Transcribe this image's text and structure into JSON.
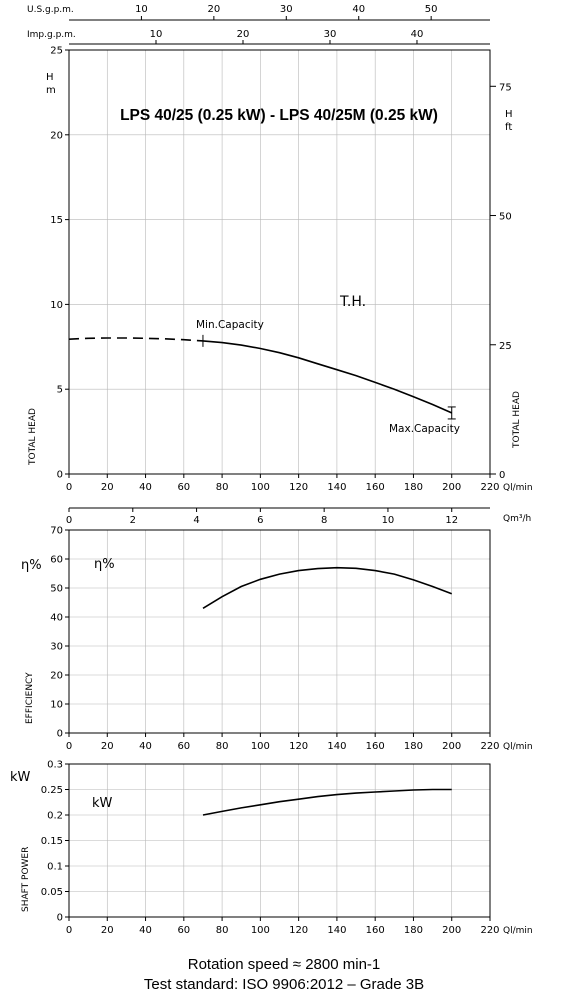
{
  "chart_data": [
    {
      "type": "line",
      "panel": "head",
      "title": "LPS 40/25 (0.25 kW) - LPS 40/25M (0.25 kW)",
      "xlabel": "Ql/min",
      "ylabel": "TOTAL HEAD",
      "y_unit_left": "H\nm",
      "y_unit_right": "H\nft",
      "right_ylabel": "TOTAL HEAD",
      "xlim": [
        0,
        220
      ],
      "ylim": [
        0,
        25
      ],
      "x_ticks": [
        "0",
        "20",
        "40",
        "60",
        "80",
        "100",
        "120",
        "140",
        "160",
        "180",
        "200",
        "220"
      ],
      "y_ticks": [
        "0",
        "5",
        "10",
        "15",
        "20",
        "25"
      ],
      "right_y_ticks": [
        "0",
        "25",
        "50",
        "75"
      ],
      "top_axes": [
        {
          "label": "U.S.g.p.m.",
          "ticks": [
            "10",
            "20",
            "30",
            "40",
            "50"
          ]
        },
        {
          "label": "Imp.g.p.m.",
          "ticks": [
            "10",
            "20",
            "30",
            "40"
          ]
        }
      ],
      "bottom_axis2": {
        "label": "Qm³/h",
        "ticks": [
          "0",
          "2",
          "4",
          "6",
          "8",
          "10",
          "12"
        ]
      },
      "curve_label": "T.H.",
      "annotations": [
        "Min.Capacity",
        "Max.Capacity"
      ],
      "dashed": {
        "x": [
          0,
          10,
          20,
          30,
          40,
          50,
          60,
          70
        ],
        "y": [
          7.95,
          8.0,
          8.02,
          8.02,
          8.0,
          7.97,
          7.92,
          7.85
        ]
      },
      "series": [
        {
          "x": [
            70,
            80,
            90,
            100,
            110,
            120,
            130,
            140,
            150,
            160,
            170,
            180,
            190,
            200
          ],
          "y": [
            7.85,
            7.75,
            7.6,
            7.4,
            7.15,
            6.85,
            6.5,
            6.15,
            5.8,
            5.4,
            5.0,
            4.55,
            4.1,
            3.6
          ]
        }
      ]
    },
    {
      "type": "line",
      "panel": "efficiency",
      "ylabel": "EFFICIENCY",
      "y_unit": "η%",
      "curve_label": "η%",
      "xlabel": "Ql/min",
      "xlim": [
        0,
        220
      ],
      "ylim": [
        0,
        70
      ],
      "x_ticks": [
        "0",
        "20",
        "40",
        "60",
        "80",
        "100",
        "120",
        "140",
        "160",
        "180",
        "200",
        "220"
      ],
      "y_ticks": [
        "0",
        "10",
        "20",
        "30",
        "40",
        "50",
        "60",
        "70"
      ],
      "series": [
        {
          "x": [
            70,
            80,
            90,
            100,
            110,
            120,
            130,
            140,
            150,
            160,
            170,
            180,
            190,
            200
          ],
          "y": [
            43,
            47,
            50.5,
            53,
            54.8,
            56,
            56.7,
            57,
            56.8,
            56,
            54.8,
            52.8,
            50.5,
            48
          ]
        }
      ]
    },
    {
      "type": "line",
      "panel": "power",
      "ylabel": "SHAFT POWER",
      "y_unit": "kW",
      "curve_label": "kW",
      "xlabel": "Ql/min",
      "xlim": [
        0,
        220
      ],
      "ylim": [
        0,
        0.3
      ],
      "x_ticks": [
        "0",
        "20",
        "40",
        "60",
        "80",
        "100",
        "120",
        "140",
        "160",
        "180",
        "200",
        "220"
      ],
      "y_ticks": [
        "0",
        "0.05",
        "0.1",
        "0.15",
        "0.2",
        "0.25",
        "0.3"
      ],
      "series": [
        {
          "x": [
            70,
            80,
            90,
            100,
            110,
            120,
            130,
            140,
            150,
            160,
            170,
            180,
            190,
            200
          ],
          "y": [
            0.2,
            0.207,
            0.214,
            0.22,
            0.226,
            0.231,
            0.236,
            0.24,
            0.243,
            0.245,
            0.247,
            0.249,
            0.25,
            0.25
          ]
        }
      ]
    }
  ],
  "footer": {
    "line1": "Rotation speed ≈ 2800 min-1",
    "line2": "Test standard: ISO 9906:2012 – Grade 3B"
  }
}
